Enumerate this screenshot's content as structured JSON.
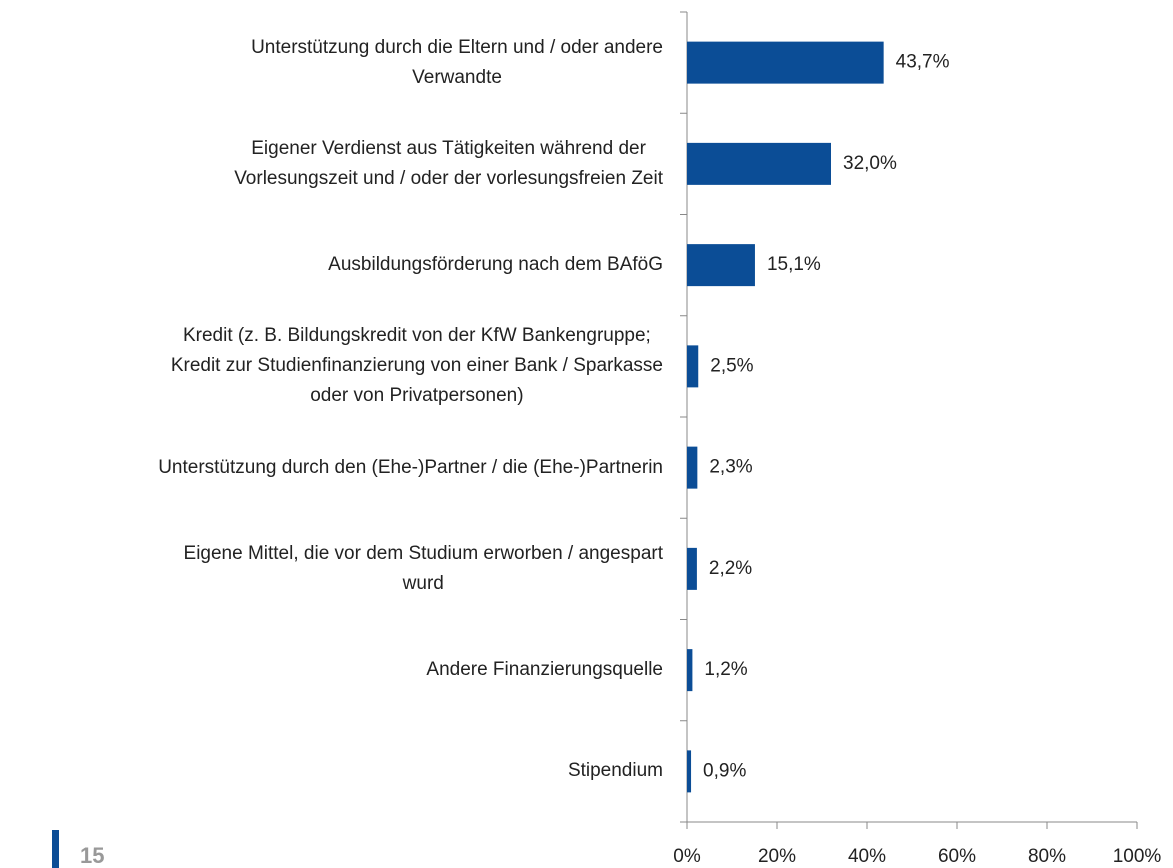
{
  "chart_data": {
    "type": "hbar",
    "categories": [
      "Unterstützung durch die Eltern und / oder andere\nVerwandte",
      "Eigener Verdienst aus Tätigkeiten während der\nVorlesungszeit und / oder der vorlesungsfreien Zeit",
      "Ausbildungsförderung nach dem BAföG",
      "Kredit (z. B. Bildungskredit von der KfW Bankengruppe;\nKredit zur Studienfinanzierung von einer Bank / Sparkasse\noder von Privatpersonen)",
      "Unterstützung durch den (Ehe-)Partner / die (Ehe-)Partnerin",
      "Eigene Mittel, die vor dem Studium erworben / angespart\nwurd",
      "Andere Finanzierungsquelle",
      "Stipendium"
    ],
    "values": [
      43.7,
      32.0,
      15.1,
      2.5,
      2.3,
      2.2,
      1.2,
      0.9
    ],
    "value_labels": [
      "43,7%",
      "32,0%",
      "15,1%",
      "2,5%",
      "2,3%",
      "2,2%",
      "1,2%",
      "0,9%"
    ],
    "color": "#0b4d96",
    "xlim": [
      0,
      100
    ],
    "xticks": [
      {
        "value": 0,
        "label": "0%"
      },
      {
        "value": 20,
        "label": "20%"
      },
      {
        "value": 40,
        "label": "40%"
      },
      {
        "value": 60,
        "label": "60%"
      },
      {
        "value": 80,
        "label": "80%"
      },
      {
        "value": 100,
        "label": "100%"
      }
    ],
    "grid": false
  },
  "page_number": "15"
}
